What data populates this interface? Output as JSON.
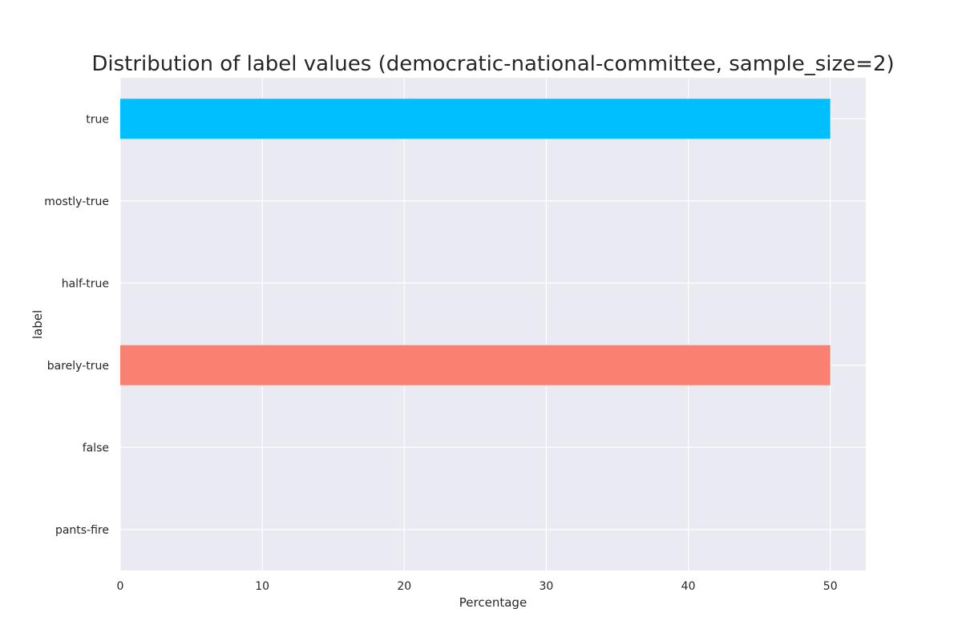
{
  "chart_data": {
    "type": "bar",
    "orientation": "horizontal",
    "title": "Distribution of label values (democratic-national-committee, sample_size=2)",
    "xlabel": "Percentage",
    "ylabel": "label",
    "categories": [
      "true",
      "mostly-true",
      "half-true",
      "barely-true",
      "false",
      "pants-fire"
    ],
    "values": [
      50,
      0,
      0,
      50,
      0,
      0
    ],
    "colors": [
      "#00bfff",
      "#00bfff",
      "#00bfff",
      "#fa8072",
      "#fa8072",
      "#fa8072"
    ],
    "xlim": [
      0,
      52.5
    ],
    "xticks": [
      0,
      10,
      20,
      30,
      40,
      50
    ],
    "grid": true,
    "background": "#eaeaf2",
    "grid_color": "#ffffff"
  }
}
